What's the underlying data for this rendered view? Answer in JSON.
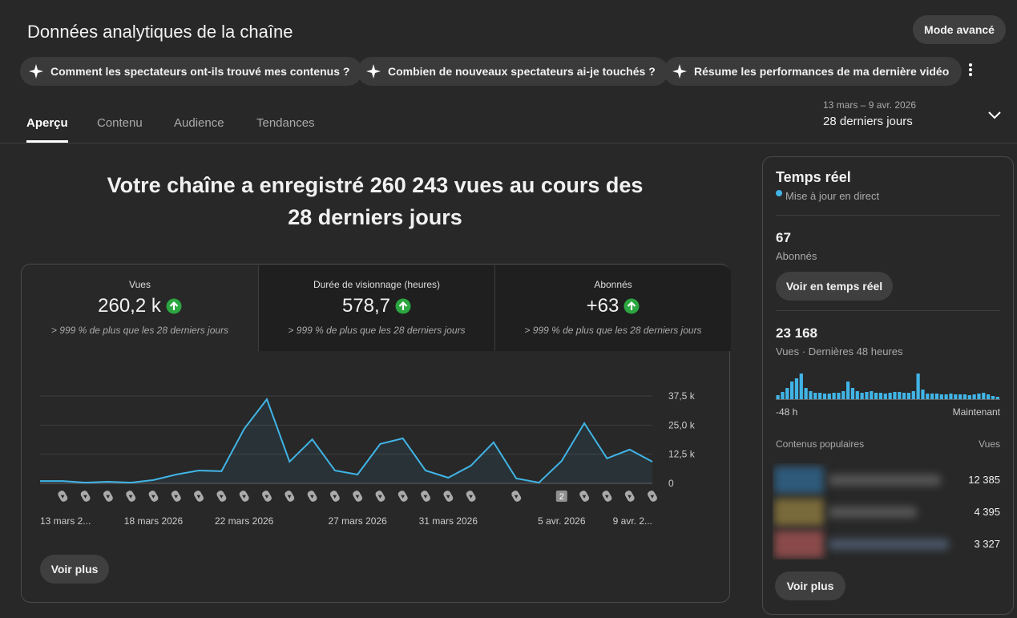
{
  "header": {
    "title": "Données analytiques de la chaîne",
    "advanced_mode": "Mode avancé"
  },
  "suggestions": [
    "Comment les spectateurs ont-ils trouvé mes contenus ?",
    "Combien de nouveaux spectateurs ai-je touchés ?",
    "Résume les performances de ma dernière vidéo"
  ],
  "tabs": {
    "items": [
      "Aperçu",
      "Contenu",
      "Audience",
      "Tendances"
    ],
    "active": 0
  },
  "date_range": {
    "period": "13 mars – 9 avr. 2026",
    "label": "28 derniers jours"
  },
  "overview": {
    "summary": "Votre chaîne a enregistré 260 243 vues au cours des 28 derniers jours",
    "metrics": [
      {
        "label": "Vues",
        "value": "260,2 k",
        "comparison": "> 999 % de plus que les 28 derniers jours"
      },
      {
        "label": "Durée de visionnage (heures)",
        "value": "578,7",
        "comparison": "> 999 % de plus que les 28 derniers jours"
      },
      {
        "label": "Abonnés",
        "value": "+63",
        "comparison": "> 999 % de plus que les 28 derniers jours"
      }
    ],
    "selected_metric": 0,
    "more": "Voir plus"
  },
  "realtime": {
    "title": "Temps réel",
    "status": "Mise à jour en direct",
    "subscribers": {
      "value": "67",
      "label": "Abonnés"
    },
    "realtime_button": "Voir en temps réel",
    "views": {
      "value": "23 168",
      "label": "Vues · Dernières 48 heures"
    },
    "popular": {
      "title": "Contenus populaires",
      "column": "Vues",
      "rows": [
        "12 385",
        "4 395",
        "3 327"
      ]
    },
    "more": "Voir plus"
  },
  "chart_data": [
    {
      "type": "line",
      "categories": [
        "13 mars 2...",
        null,
        null,
        null,
        null,
        "18 mars 2026",
        null,
        null,
        null,
        "22 mars 2026",
        null,
        null,
        null,
        null,
        "27 mars 2026",
        null,
        null,
        null,
        "31 mars 2026",
        null,
        null,
        null,
        null,
        "5 avr. 2026",
        null,
        null,
        null,
        "9 avr. 2..."
      ],
      "values": [
        1000,
        1000,
        300,
        700,
        300,
        1400,
        3800,
        5500,
        5200,
        23400,
        36100,
        9300,
        18900,
        5500,
        3800,
        16900,
        19300,
        5500,
        2400,
        7600,
        17600,
        2100,
        300,
        9600,
        25800,
        10700,
        14500,
        9300
      ],
      "uploads": [
        null,
        1,
        1,
        1,
        1,
        1,
        1,
        1,
        1,
        1,
        1,
        1,
        1,
        1,
        1,
        1,
        1,
        1,
        1,
        1,
        null,
        1,
        null,
        2,
        1,
        1,
        1,
        1
      ],
      "ylim": [
        0,
        37500
      ],
      "yticks": [
        0,
        {
          "value": 12500,
          "label": "12,5 k"
        },
        {
          "value": 25000,
          "label": "25,0 k"
        },
        {
          "value": 37500,
          "label": "37,5 k"
        }
      ],
      "grid": true,
      "color": "#41b4e6"
    },
    {
      "type": "bar",
      "values": [
        240,
        432,
        672,
        1056,
        1248,
        1536,
        672,
        480,
        384,
        384,
        336,
        336,
        384,
        384,
        480,
        1056,
        672,
        480,
        384,
        432,
        480,
        384,
        384,
        336,
        384,
        432,
        432,
        384,
        384,
        480,
        1536,
        576,
        336,
        336,
        336,
        288,
        288,
        336,
        288,
        288,
        288,
        240,
        288,
        336,
        384,
        288,
        192,
        144
      ],
      "x_start": "-48 h",
      "x_end": "Maintenant",
      "color": "#41b4e6"
    }
  ]
}
